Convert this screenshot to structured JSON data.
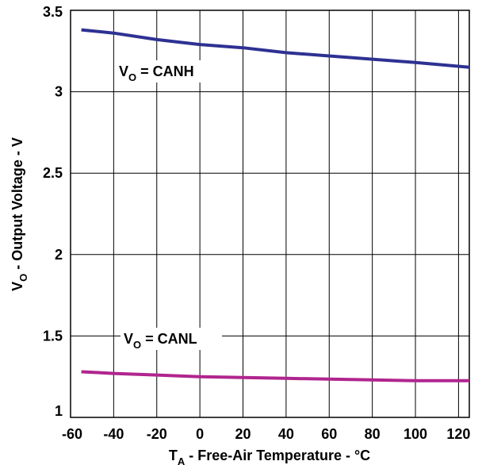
{
  "chart_data": {
    "type": "line",
    "title": "",
    "xlabel": {
      "main": "T",
      "sub": "A",
      "rest": " - Free-Air Temperature - °C"
    },
    "ylabel": {
      "main": "V",
      "sub": "O",
      "rest": " - Output Voltage - V"
    },
    "xlim": [
      -60,
      125
    ],
    "ylim": [
      1,
      3.5
    ],
    "xticks": [
      -60,
      -40,
      -20,
      0,
      20,
      40,
      60,
      80,
      100,
      120
    ],
    "yticks": [
      1,
      1.5,
      2,
      2.5,
      3,
      3.5
    ],
    "xtick_labels": [
      "-60",
      "-40",
      "-20",
      "0",
      "20",
      "40",
      "60",
      "80",
      "100",
      "120"
    ],
    "ytick_labels": [
      "1",
      "1.5",
      "2",
      "2.5",
      "3",
      "3.5"
    ],
    "grid": true,
    "series": [
      {
        "name": "CANH",
        "color": "#2e3192",
        "x": [
          -55,
          -40,
          -20,
          0,
          20,
          40,
          60,
          80,
          100,
          125
        ],
        "y": [
          3.38,
          3.36,
          3.32,
          3.29,
          3.27,
          3.24,
          3.22,
          3.2,
          3.18,
          3.15
        ]
      },
      {
        "name": "CANL",
        "color": "#b0258e",
        "x": [
          -55,
          -40,
          -20,
          0,
          20,
          40,
          60,
          80,
          100,
          125
        ],
        "y": [
          1.28,
          1.27,
          1.26,
          1.25,
          1.245,
          1.24,
          1.235,
          1.23,
          1.225,
          1.225
        ]
      }
    ],
    "annotations": [
      {
        "series": "CANH",
        "main": "V",
        "sub": "O",
        "rest": " = CANH"
      },
      {
        "series": "CANL",
        "main": "V",
        "sub": "O",
        "rest": " = CANL"
      }
    ]
  }
}
